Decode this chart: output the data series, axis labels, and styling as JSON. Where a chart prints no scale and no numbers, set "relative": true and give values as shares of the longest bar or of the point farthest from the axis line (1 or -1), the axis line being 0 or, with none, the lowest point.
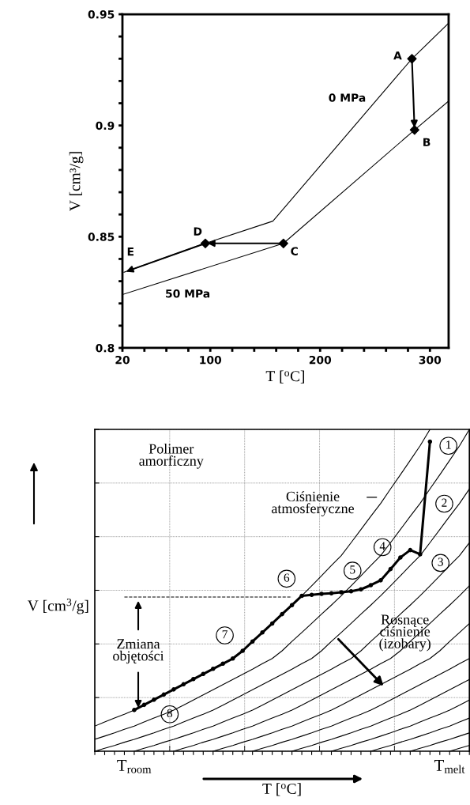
{
  "chart_data": [
    {
      "type": "line",
      "xlabel": "T [$^{o}$C]",
      "ylabel": "V [cm³/g]",
      "xlim": [
        20,
        317
      ],
      "ylim": [
        0.8,
        0.95
      ],
      "xticks": [
        20,
        {
          "value": 40,
          "label": null
        },
        {
          "value": 60,
          "label": null
        },
        {
          "value": 80,
          "label": null
        },
        100,
        {
          "value": 120,
          "label": null
        },
        {
          "value": 140,
          "label": null
        },
        {
          "value": 160,
          "label": null
        },
        {
          "value": 180,
          "label": null
        },
        200,
        {
          "value": 220,
          "label": null
        },
        {
          "value": 240,
          "label": null
        },
        {
          "value": 260,
          "label": null
        },
        {
          "value": 280,
          "label": null
        },
        300
      ],
      "yticks": [
        0.8,
        {
          "value": 0.81,
          "label": null
        },
        {
          "value": 0.82,
          "label": null
        },
        {
          "value": 0.83,
          "label": null
        },
        {
          "value": 0.84,
          "label": null
        },
        0.85,
        {
          "value": 0.86,
          "label": null
        },
        {
          "value": 0.87,
          "label": null
        },
        {
          "value": 0.88,
          "label": null
        },
        {
          "value": 0.89,
          "label": null
        },
        0.9,
        {
          "value": 0.91,
          "label": null
        },
        {
          "value": 0.92,
          "label": null
        },
        {
          "value": 0.93,
          "label": null
        },
        {
          "value": 0.94,
          "label": null
        },
        0.95
      ],
      "series": [
        {
          "color": "#000000",
          "x": [
            21.4,
            95.5,
            157,
            283.6,
            317
          ],
          "values": [
            0.834,
            0.847,
            0.857,
            0.93,
            0.946
          ]
        },
        {
          "color": "#000000",
          "x": [
            20,
            166.6,
            286,
            317
          ],
          "values": [
            0.824,
            0.847,
            0.898,
            0.911
          ]
        },
        {
          "type": "scatter",
          "marker": "diamond",
          "color": "#000000",
          "x": [
            283.6,
            286,
            166.6,
            95.5
          ],
          "values": [
            0.93,
            0.898,
            0.847,
            0.847
          ]
        }
      ],
      "annotations": [
        {
          "text": "A",
          "x": 283.6,
          "y": 0.93
        },
        {
          "text": "B",
          "x": 286,
          "y": 0.898
        },
        {
          "text": "C",
          "x": 166.6,
          "y": 0.847
        },
        {
          "text": "D",
          "x": 95.5,
          "y": 0.847
        },
        {
          "text": "E",
          "x": 21.4,
          "y": 0.834
        },
        "0 MPa",
        "50 MPa"
      ],
      "grid": false,
      "legend": false
    },
    {
      "type": "line",
      "relative": true,
      "xlabel": "T [$^{o}$C]",
      "ylabel": "V [cm$^{3}$/g]",
      "categories": [
        null,
        null,
        null,
        null,
        "T$_{room}$",
        null,
        null,
        null,
        null,
        null,
        null,
        null,
        null,
        null,
        null,
        null,
        null,
        null,
        null,
        null,
        null,
        null,
        null,
        null,
        null,
        null,
        null,
        null,
        null,
        null,
        null,
        null,
        null,
        null,
        null,
        null,
        "T$_{melt}$",
        null,
        null
      ],
      "series": [
        {
          "color": "#000000",
          "values": [
            0.078,
            0.091,
            0.103,
            0.115,
            0.128,
            0.143,
            0.159,
            0.175,
            0.191,
            0.207,
            0.223,
            0.239,
            0.255,
            0.272,
            0.288,
            0.312,
            0.341,
            0.369,
            0.397,
            0.426,
            0.454,
            0.483,
            0.514,
            0.545,
            0.577,
            0.608,
            0.648,
            0.689,
            0.73,
            0.77,
            0.815,
            0.859,
            0.904,
            0.949,
            1.0,
            null,
            null,
            null,
            null
          ]
        },
        {
          "color": "#000000",
          "values": [
            0.037,
            0.047,
            0.057,
            0.068,
            0.078,
            0.091,
            0.103,
            0.115,
            0.128,
            0.143,
            0.159,
            0.175,
            0.191,
            0.207,
            0.223,
            0.239,
            0.255,
            0.272,
            0.288,
            0.312,
            0.341,
            0.369,
            0.397,
            0.426,
            0.454,
            0.483,
            0.514,
            0.545,
            0.577,
            0.608,
            0.648,
            0.689,
            0.73,
            0.77,
            0.815,
            0.859,
            0.904,
            0.949,
            1.0
          ]
        },
        {
          "color": "#000000",
          "values": [
            0,
            0.009,
            0.018,
            0.028,
            0.037,
            0.047,
            0.057,
            0.068,
            0.078,
            0.091,
            0.103,
            0.115,
            0.128,
            0.143,
            0.159,
            0.175,
            0.191,
            0.207,
            0.223,
            0.239,
            0.255,
            0.272,
            0.288,
            0.312,
            0.341,
            0.369,
            0.397,
            0.426,
            0.454,
            0.483,
            0.514,
            0.545,
            0.577,
            0.608,
            0.648,
            0.689,
            0.73,
            0.77,
            0.815
          ]
        },
        {
          "color": "#000000",
          "values": [
            null,
            null,
            null,
            null,
            0,
            0.009,
            0.018,
            0.028,
            0.037,
            0.047,
            0.057,
            0.068,
            0.078,
            0.091,
            0.103,
            0.115,
            0.128,
            0.143,
            0.159,
            0.175,
            0.191,
            0.207,
            0.223,
            0.239,
            0.255,
            0.272,
            0.288,
            0.312,
            0.341,
            0.369,
            0.397,
            0.426,
            0.454,
            0.483,
            0.514,
            0.545,
            0.577,
            0.608,
            0.648
          ]
        },
        {
          "color": "#000000",
          "values": [
            null,
            null,
            null,
            null,
            null,
            null,
            null,
            null,
            0,
            0.009,
            0.018,
            0.028,
            0.037,
            0.047,
            0.057,
            0.068,
            0.078,
            0.091,
            0.103,
            0.115,
            0.128,
            0.143,
            0.159,
            0.175,
            0.191,
            0.207,
            0.223,
            0.239,
            0.255,
            0.272,
            0.288,
            0.312,
            0.341,
            0.369,
            0.397,
            0.426,
            0.454,
            0.483,
            0.514
          ]
        },
        {
          "color": "#000000",
          "values": [
            null,
            null,
            null,
            null,
            null,
            null,
            null,
            null,
            null,
            null,
            null,
            null,
            0,
            0.009,
            0.018,
            0.028,
            0.037,
            0.047,
            0.057,
            0.068,
            0.078,
            0.091,
            0.103,
            0.115,
            0.128,
            0.143,
            0.159,
            0.175,
            0.191,
            0.207,
            0.223,
            0.239,
            0.255,
            0.272,
            0.288,
            0.312,
            0.341,
            0.369,
            0.397
          ]
        },
        {
          "color": "#000000",
          "values": [
            null,
            null,
            null,
            null,
            null,
            null,
            null,
            null,
            null,
            null,
            null,
            null,
            null,
            null,
            null,
            null,
            0,
            0.009,
            0.018,
            0.028,
            0.037,
            0.047,
            0.057,
            0.068,
            0.078,
            0.091,
            0.103,
            0.115,
            0.128,
            0.143,
            0.159,
            0.175,
            0.191,
            0.207,
            0.223,
            0.239,
            0.255,
            0.272,
            0.288
          ]
        },
        {
          "color": "#000000",
          "values": [
            null,
            null,
            null,
            null,
            null,
            null,
            null,
            null,
            null,
            null,
            null,
            null,
            null,
            null,
            null,
            null,
            null,
            null,
            null,
            null,
            0,
            0.009,
            0.018,
            0.028,
            0.037,
            0.047,
            0.057,
            0.068,
            0.078,
            0.091,
            0.103,
            0.115,
            0.128,
            0.143,
            0.159,
            0.175,
            0.191,
            0.207,
            0.223
          ]
        },
        {
          "color": "#000000",
          "values": [
            null,
            null,
            null,
            null,
            null,
            null,
            null,
            null,
            null,
            null,
            null,
            null,
            null,
            null,
            null,
            null,
            null,
            null,
            null,
            null,
            null,
            null,
            null,
            null,
            0,
            0.009,
            0.018,
            0.028,
            0.037,
            0.047,
            0.057,
            0.068,
            0.078,
            0.091,
            0.103,
            0.115,
            0.128,
            0.143,
            0.159
          ]
        },
        {
          "color": "#000000",
          "values": [
            null,
            null,
            null,
            null,
            null,
            null,
            null,
            null,
            null,
            null,
            null,
            null,
            null,
            null,
            null,
            null,
            null,
            null,
            null,
            null,
            null,
            null,
            null,
            null,
            null,
            null,
            null,
            null,
            0,
            0.009,
            0.018,
            0.028,
            0.037,
            0.047,
            0.057,
            0.068,
            0.078,
            0.091,
            0.103
          ]
        },
        {
          "color": "#000000",
          "values": [
            null,
            null,
            null,
            null,
            null,
            null,
            null,
            null,
            null,
            null,
            null,
            null,
            null,
            null,
            null,
            null,
            null,
            null,
            null,
            null,
            null,
            null,
            null,
            null,
            null,
            null,
            null,
            null,
            null,
            null,
            null,
            null,
            0,
            0.009,
            0.018,
            0.028,
            0.037,
            0.047,
            0.057
          ]
        },
        {
          "color": "#000000",
          "values": [
            null,
            null,
            null,
            null,
            null,
            null,
            null,
            null,
            null,
            null,
            null,
            null,
            null,
            null,
            null,
            null,
            null,
            null,
            null,
            null,
            null,
            null,
            null,
            null,
            null,
            null,
            null,
            null,
            null,
            null,
            null,
            null,
            null,
            null,
            null,
            null,
            0,
            0.009,
            0.018
          ]
        },
        {
          "color": "#000000",
          "marker": "circle",
          "values": [
            null,
            null,
            null,
            null,
            0.128,
            0.144,
            0.16,
            0.176,
            0.192,
            0.208,
            0.224,
            0.24,
            0.256,
            0.272,
            0.288,
            0.312,
            0.341,
            0.369,
            0.397,
            0.426,
            0.454,
            0.483,
            0.486,
            0.489,
            0.491,
            0.494,
            0.497,
            0.503,
            0.516,
            0.531,
            0.566,
            0.602,
            0.625,
            0.612,
            0.962,
            null,
            null,
            null,
            null
          ]
        },
        {
          "color": "#000000",
          "line_style": "dashed",
          "values": [
            null,
            null,
            null,
            0.479,
            0.479,
            0.479,
            0.479,
            0.479,
            0.479,
            0.479,
            0.479,
            0.479,
            0.479,
            0.479,
            0.479,
            0.479,
            0.479,
            0.479,
            0.479,
            0.479,
            0.479,
            null,
            null,
            null,
            null,
            null,
            null,
            null,
            null,
            null,
            null,
            null,
            null,
            null,
            null,
            null,
            null,
            null,
            null
          ]
        }
      ],
      "annotations": [
        "1",
        "2",
        "3",
        "4",
        "5",
        "6",
        "7",
        "8",
        "Polimer\namorficzny",
        "Ciśnienie\natmosferyczne",
        "Rosnące\nciśnienie\n(izobary)",
        "Zmiana\nobjętości"
      ],
      "grid": true,
      "legend": false
    }
  ]
}
